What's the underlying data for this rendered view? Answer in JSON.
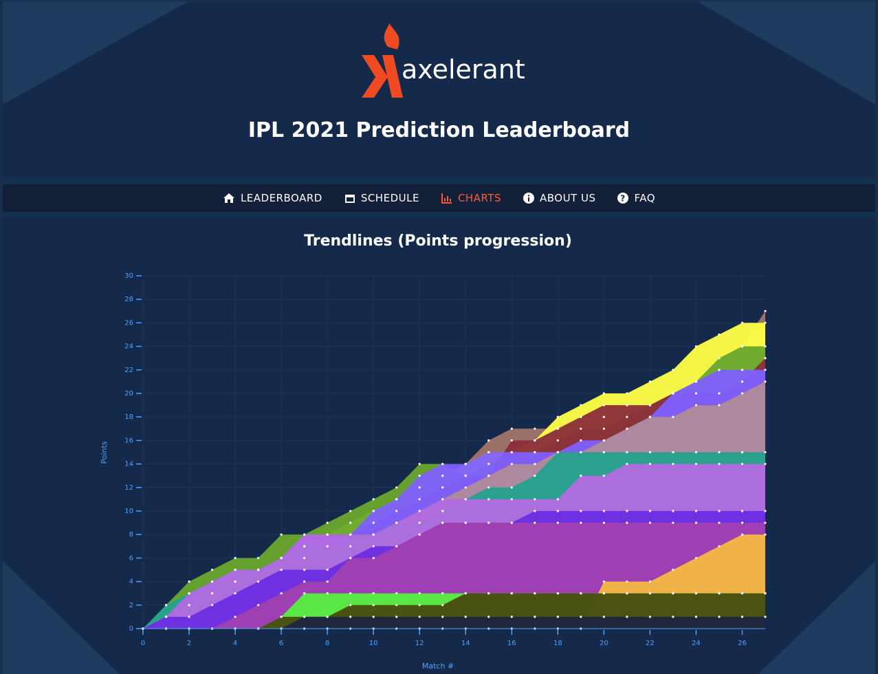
{
  "header": {
    "logo_text": "axelerant",
    "title": "IPL 2021 Prediction Leaderboard"
  },
  "nav": {
    "items": [
      "LEADERBOARD",
      "SCHEDULE",
      "CHARTS",
      "ABOUT US",
      "FAQ"
    ]
  },
  "chart_data": {
    "type": "area",
    "title": "Trendlines (Points progression)",
    "x_label": "Match #",
    "y_label": "Points",
    "x": [
      0,
      1,
      2,
      3,
      4,
      5,
      6,
      7,
      8,
      9,
      10,
      11,
      12,
      13,
      14,
      15,
      16,
      17,
      18,
      19,
      20,
      21,
      22,
      23,
      24,
      25,
      26,
      27
    ],
    "xlim": [
      0,
      27
    ],
    "ylim": [
      0,
      30
    ],
    "xticks": [
      0,
      2,
      4,
      6,
      8,
      10,
      12,
      14,
      16,
      18,
      20,
      22,
      24,
      26
    ],
    "yticks": [
      0,
      2,
      4,
      6,
      8,
      10,
      12,
      14,
      16,
      18,
      20,
      22,
      24,
      26,
      28,
      30
    ],
    "grid": true,
    "series": [
      {
        "color": "#a0756a",
        "values": [
          0,
          1,
          2,
          3,
          4,
          5,
          6,
          7,
          8,
          9,
          10,
          11,
          12,
          13,
          14,
          16,
          17,
          17,
          17,
          18,
          18,
          19,
          19,
          20,
          21,
          22,
          24,
          27
        ]
      },
      {
        "color": "#ffff44",
        "values": [
          0,
          1,
          2,
          3,
          4,
          5,
          6,
          7,
          8,
          9,
          10,
          11,
          12,
          13,
          14,
          15,
          15,
          16,
          18,
          19,
          20,
          20,
          21,
          22,
          24,
          25,
          26,
          26
        ]
      },
      {
        "color": "#6aa82e",
        "values": [
          0,
          2,
          4,
          5,
          6,
          6,
          8,
          8,
          9,
          10,
          11,
          12,
          14,
          14,
          13,
          14,
          15,
          15,
          16,
          17,
          17,
          18,
          19,
          20,
          21,
          23,
          24,
          24
        ]
      },
      {
        "color": "#8b2d3a",
        "values": [
          0,
          1,
          2,
          3,
          4,
          5,
          6,
          7,
          8,
          8,
          9,
          10,
          11,
          12,
          13,
          13,
          16,
          16,
          17,
          18,
          19,
          19,
          19,
          20,
          20,
          20,
          21,
          23
        ]
      },
      {
        "color": "#8060ff",
        "values": [
          0,
          1,
          3,
          4,
          5,
          5,
          6,
          8,
          8,
          8,
          10,
          11,
          13,
          14,
          14,
          15,
          15,
          15,
          15,
          16,
          16,
          17,
          18,
          20,
          21,
          22,
          22,
          22
        ]
      },
      {
        "color": "#b08a9a",
        "values": [
          0,
          1,
          2,
          3,
          4,
          5,
          5,
          6,
          7,
          7,
          8,
          9,
          10,
          11,
          12,
          13,
          14,
          14,
          15,
          15,
          16,
          17,
          18,
          18,
          19,
          19,
          20,
          21
        ]
      },
      {
        "color": "#25a18e",
        "values": [
          0,
          2,
          3,
          4,
          5,
          5,
          6,
          7,
          7,
          8,
          8,
          9,
          9,
          10,
          11,
          12,
          12,
          13,
          15,
          15,
          15,
          15,
          15,
          15,
          15,
          15,
          15,
          15
        ]
      },
      {
        "color": "#b36ae2",
        "values": [
          0,
          1,
          3,
          4,
          5,
          5,
          6,
          8,
          8,
          8,
          8,
          9,
          10,
          11,
          11,
          11,
          11,
          11,
          11,
          13,
          13,
          14,
          14,
          14,
          14,
          14,
          14,
          14
        ]
      },
      {
        "color": "#6a2de0",
        "values": [
          0,
          1,
          1,
          2,
          3,
          4,
          5,
          5,
          5,
          6,
          7,
          7,
          8,
          9,
          9,
          9,
          9,
          10,
          10,
          10,
          10,
          10,
          10,
          10,
          10,
          10,
          10,
          10
        ]
      },
      {
        "color": "#a040b0",
        "values": [
          0,
          0,
          0,
          0,
          1,
          2,
          3,
          4,
          4,
          6,
          6,
          7,
          8,
          9,
          9,
          9,
          9,
          9,
          9,
          9,
          9,
          9,
          9,
          9,
          9,
          9,
          9,
          9
        ]
      },
      {
        "color": "#f5b942",
        "values": [
          0,
          0,
          0,
          0,
          0,
          0,
          0,
          0,
          0,
          0,
          0,
          0,
          0,
          0,
          0,
          0,
          0,
          0,
          0,
          0,
          4,
          4,
          4,
          5,
          6,
          7,
          8,
          8
        ]
      },
      {
        "color": "#55f040",
        "values": [
          0,
          0,
          0,
          0,
          0,
          0,
          1,
          3,
          3,
          3,
          3,
          3,
          3,
          3,
          3,
          3,
          3,
          3,
          3,
          3,
          3,
          3,
          3,
          3,
          3,
          3,
          3,
          3
        ]
      },
      {
        "color": "#4a4a10",
        "values": [
          0,
          0,
          0,
          0,
          0,
          0,
          1,
          1,
          1,
          2,
          2,
          2,
          2,
          2,
          3,
          3,
          3,
          3,
          3,
          3,
          3,
          3,
          3,
          3,
          3,
          3,
          3,
          3
        ]
      },
      {
        "color": "#1f2540",
        "values": [
          0,
          0,
          0,
          0,
          0,
          0,
          0,
          1,
          1,
          1,
          1,
          1,
          1,
          1,
          1,
          1,
          1,
          1,
          1,
          1,
          1,
          1,
          1,
          1,
          1,
          1,
          1,
          1
        ]
      }
    ]
  }
}
